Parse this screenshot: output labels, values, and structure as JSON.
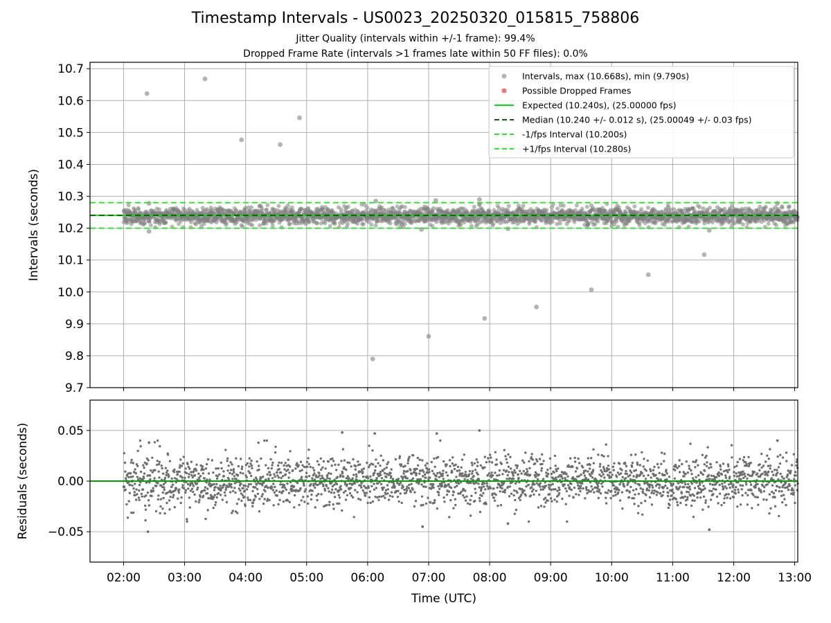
{
  "header": {
    "title": "Timestamp Intervals - US0023_20250320_015815_758806",
    "subtitle_1": "Jitter Quality (intervals within +/-1 frame): 99.4%",
    "subtitle_2": "Dropped Frame Rate (intervals >1 frames late within 50 FF files): 0.0%"
  },
  "chart_data": [
    {
      "type": "scatter",
      "panel": "intervals",
      "ylabel": "Intervals (seconds)",
      "xlabel": "",
      "ylim": [
        9.7,
        10.72
      ],
      "yticks": [
        "9.7",
        "9.8",
        "9.9",
        "10.0",
        "10.1",
        "10.2",
        "10.3",
        "10.4",
        "10.5",
        "10.6",
        "10.7"
      ],
      "xlim": [
        "01:27",
        "13:03"
      ],
      "grid": true,
      "legend_position": "top-right",
      "series": [
        {
          "name": "Intervals, max (10.668s), min (9.790s)",
          "color": "#808080",
          "typical_band": [
            10.215,
            10.262
          ],
          "bulk_start": "02:00",
          "bulk_end": "13:03",
          "notable_points": [
            {
              "t": "02:23",
              "y": 10.622
            },
            {
              "t": "03:20",
              "y": 10.668
            },
            {
              "t": "03:56",
              "y": 10.477
            },
            {
              "t": "04:34",
              "y": 10.462
            },
            {
              "t": "04:53",
              "y": 10.546
            },
            {
              "t": "06:05",
              "y": 9.79
            },
            {
              "t": "07:00",
              "y": 9.861
            },
            {
              "t": "07:55",
              "y": 9.917
            },
            {
              "t": "08:46",
              "y": 9.953
            },
            {
              "t": "09:40",
              "y": 10.007
            },
            {
              "t": "10:36",
              "y": 10.054
            },
            {
              "t": "11:31",
              "y": 10.117
            },
            {
              "t": "02:25",
              "y": 10.278
            },
            {
              "t": "02:25",
              "y": 10.19
            },
            {
              "t": "06:08",
              "y": 10.285
            },
            {
              "t": "07:07",
              "y": 10.287
            },
            {
              "t": "07:50",
              "y": 10.29
            },
            {
              "t": "06:53",
              "y": 10.196
            },
            {
              "t": "08:18",
              "y": 10.198
            },
            {
              "t": "11:36",
              "y": 10.193
            },
            {
              "t": "12:43",
              "y": 10.278
            }
          ]
        },
        {
          "name": "Possible Dropped Frames",
          "color": "#ff6f6f",
          "values": []
        },
        {
          "name": "Expected (10.240s), (25.00000 fps)",
          "color": "#00e600",
          "style": "solid",
          "value": 10.24
        },
        {
          "name": "Median (10.240 +/- 0.012 s), (25.00049 +/- 0.03 fps)",
          "color": "#006400",
          "style": "dashed",
          "value": 10.24
        },
        {
          "name": "-1/fps Interval (10.200s)",
          "color": "#22ee22",
          "style": "dashed",
          "value": 10.2
        },
        {
          "name": "+1/fps Interval (10.280s)",
          "color": "#22ee22",
          "style": "dashed",
          "value": 10.28
        }
      ]
    },
    {
      "type": "scatter",
      "panel": "residuals",
      "ylabel": "Residuals (seconds)",
      "xlabel": "Time (UTC)",
      "ylim": [
        -0.08,
        0.08
      ],
      "yticks": [
        "−0.05",
        "0.00",
        "0.05"
      ],
      "xticks": [
        "02:00",
        "03:00",
        "04:00",
        "05:00",
        "06:00",
        "07:00",
        "08:00",
        "09:00",
        "10:00",
        "11:00",
        "12:00",
        "13:00"
      ],
      "xlim": [
        "01:27",
        "13:03"
      ],
      "grid": true,
      "series": [
        {
          "name": "",
          "color": "#6e6e6e",
          "spread_sd": 0.0125,
          "range": [
            -0.05,
            0.05
          ],
          "bulk_start": "02:00",
          "bulk_end": "13:03",
          "notable_points": [
            {
              "t": "02:24",
              "y": -0.05
            },
            {
              "t": "02:25",
              "y": 0.038
            },
            {
              "t": "05:35",
              "y": 0.048
            },
            {
              "t": "06:07",
              "y": 0.047
            },
            {
              "t": "07:08",
              "y": 0.047
            },
            {
              "t": "07:50",
              "y": 0.05
            },
            {
              "t": "06:54",
              "y": -0.045
            },
            {
              "t": "08:18",
              "y": -0.042
            },
            {
              "t": "11:36",
              "y": -0.048
            },
            {
              "t": "12:43",
              "y": 0.04
            }
          ]
        },
        {
          "name": "",
          "color": "#00a000",
          "style": "solid",
          "value": 0.0
        }
      ]
    }
  ]
}
